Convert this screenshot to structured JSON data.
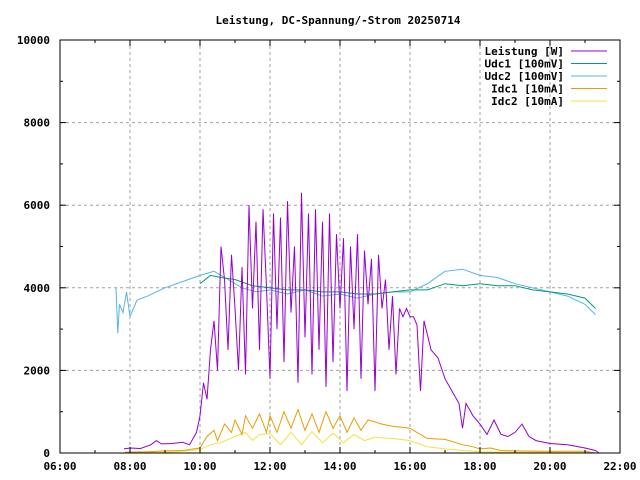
{
  "chart_data": {
    "type": "line",
    "title": "Leistung, DC-Spannung/-Strom 20250714",
    "xlabel": "",
    "ylabel": "",
    "xlim": [
      6,
      22
    ],
    "ylim": [
      0,
      10000
    ],
    "grid": true,
    "legend_position": "top-right",
    "x_ticks": [
      {
        "v": 6,
        "label": "06:00"
      },
      {
        "v": 8,
        "label": "08:00"
      },
      {
        "v": 10,
        "label": "10:00"
      },
      {
        "v": 12,
        "label": "12:00"
      },
      {
        "v": 14,
        "label": "14:00"
      },
      {
        "v": 16,
        "label": "16:00"
      },
      {
        "v": 18,
        "label": "18:00"
      },
      {
        "v": 20,
        "label": "20:00"
      },
      {
        "v": 22,
        "label": "22:00"
      }
    ],
    "y_ticks": [
      {
        "v": 0,
        "label": "0"
      },
      {
        "v": 2000,
        "label": "2000"
      },
      {
        "v": 4000,
        "label": "4000"
      },
      {
        "v": 6000,
        "label": "6000"
      },
      {
        "v": 8000,
        "label": "8000"
      },
      {
        "v": 10000,
        "label": "10000"
      }
    ],
    "series": [
      {
        "name": "Leistung [W]",
        "color": "#9400d3",
        "points": [
          [
            7.83,
            100
          ],
          [
            8.0,
            120
          ],
          [
            8.3,
            110
          ],
          [
            8.6,
            200
          ],
          [
            8.75,
            300
          ],
          [
            8.9,
            220
          ],
          [
            9.2,
            230
          ],
          [
            9.5,
            260
          ],
          [
            9.7,
            200
          ],
          [
            9.9,
            500
          ],
          [
            10.0,
            900
          ],
          [
            10.1,
            1700
          ],
          [
            10.2,
            1300
          ],
          [
            10.3,
            2500
          ],
          [
            10.4,
            3200
          ],
          [
            10.5,
            2000
          ],
          [
            10.6,
            5000
          ],
          [
            10.7,
            4200
          ],
          [
            10.8,
            2500
          ],
          [
            10.9,
            4800
          ],
          [
            11.0,
            3500
          ],
          [
            11.1,
            2000
          ],
          [
            11.2,
            4500
          ],
          [
            11.3,
            1900
          ],
          [
            11.4,
            6000
          ],
          [
            11.5,
            3500
          ],
          [
            11.6,
            5600
          ],
          [
            11.7,
            2500
          ],
          [
            11.8,
            5900
          ],
          [
            11.9,
            4000
          ],
          [
            12.0,
            1800
          ],
          [
            12.1,
            5800
          ],
          [
            12.2,
            3000
          ],
          [
            12.3,
            5700
          ],
          [
            12.4,
            2200
          ],
          [
            12.5,
            6100
          ],
          [
            12.6,
            3400
          ],
          [
            12.7,
            5000
          ],
          [
            12.8,
            1700
          ],
          [
            12.9,
            6300
          ],
          [
            13.0,
            2800
          ],
          [
            13.1,
            5800
          ],
          [
            13.2,
            1900
          ],
          [
            13.3,
            5900
          ],
          [
            13.4,
            2500
          ],
          [
            13.5,
            5600
          ],
          [
            13.6,
            1600
          ],
          [
            13.7,
            5800
          ],
          [
            13.8,
            2200
          ],
          [
            13.9,
            5300
          ],
          [
            14.0,
            3500
          ],
          [
            14.1,
            5200
          ],
          [
            14.2,
            1500
          ],
          [
            14.3,
            5000
          ],
          [
            14.4,
            3000
          ],
          [
            14.5,
            5300
          ],
          [
            14.6,
            1800
          ],
          [
            14.7,
            4900
          ],
          [
            14.8,
            3600
          ],
          [
            14.9,
            4700
          ],
          [
            15.0,
            1500
          ],
          [
            15.1,
            4800
          ],
          [
            15.2,
            3500
          ],
          [
            15.3,
            4200
          ],
          [
            15.4,
            2500
          ],
          [
            15.5,
            3800
          ],
          [
            15.6,
            1900
          ],
          [
            15.7,
            3500
          ],
          [
            15.8,
            3300
          ],
          [
            15.9,
            3500
          ],
          [
            16.0,
            3300
          ],
          [
            16.1,
            3300
          ],
          [
            16.2,
            3100
          ],
          [
            16.3,
            1500
          ],
          [
            16.4,
            3200
          ],
          [
            16.6,
            2500
          ],
          [
            16.8,
            2300
          ],
          [
            17.0,
            1800
          ],
          [
            17.2,
            1500
          ],
          [
            17.4,
            1200
          ],
          [
            17.5,
            600
          ],
          [
            17.6,
            1200
          ],
          [
            17.8,
            900
          ],
          [
            18.0,
            700
          ],
          [
            18.2,
            450
          ],
          [
            18.4,
            800
          ],
          [
            18.6,
            450
          ],
          [
            18.8,
            400
          ],
          [
            19.0,
            500
          ],
          [
            19.2,
            700
          ],
          [
            19.4,
            400
          ],
          [
            19.6,
            300
          ],
          [
            20.0,
            230
          ],
          [
            20.5,
            200
          ],
          [
            21.0,
            120
          ],
          [
            21.3,
            60
          ],
          [
            21.4,
            0
          ]
        ]
      },
      {
        "name": "Udc1 [100mV]",
        "color": "#009e73",
        "points": [
          [
            10.0,
            4100
          ],
          [
            10.3,
            4300
          ],
          [
            10.6,
            4250
          ],
          [
            11.0,
            4200
          ],
          [
            11.5,
            4050
          ],
          [
            12.0,
            4000
          ],
          [
            12.5,
            3950
          ],
          [
            13.0,
            3950
          ],
          [
            13.5,
            3900
          ],
          [
            14.0,
            3900
          ],
          [
            14.5,
            3850
          ],
          [
            15.0,
            3850
          ],
          [
            15.5,
            3900
          ],
          [
            16.0,
            3950
          ],
          [
            16.5,
            3950
          ],
          [
            17.0,
            4100
          ],
          [
            17.5,
            4050
          ],
          [
            18.0,
            4100
          ],
          [
            18.5,
            4050
          ],
          [
            19.0,
            4050
          ],
          [
            19.5,
            3950
          ],
          [
            20.0,
            3900
          ],
          [
            20.5,
            3850
          ],
          [
            21.0,
            3750
          ],
          [
            21.3,
            3500
          ]
        ]
      },
      {
        "name": "Udc2 [100mV]",
        "color": "#56b4e9",
        "points": [
          [
            7.6,
            4000
          ],
          [
            7.65,
            2900
          ],
          [
            7.7,
            3600
          ],
          [
            7.8,
            3400
          ],
          [
            7.9,
            3900
          ],
          [
            8.0,
            3300
          ],
          [
            8.2,
            3700
          ],
          [
            8.5,
            3800
          ],
          [
            9.0,
            4000
          ],
          [
            9.5,
            4150
          ],
          [
            10.0,
            4300
          ],
          [
            10.4,
            4400
          ],
          [
            10.8,
            4200
          ],
          [
            11.2,
            4000
          ],
          [
            11.6,
            3900
          ],
          [
            12.0,
            3950
          ],
          [
            12.5,
            3850
          ],
          [
            13.0,
            3950
          ],
          [
            13.5,
            3800
          ],
          [
            14.0,
            3850
          ],
          [
            14.5,
            3750
          ],
          [
            15.0,
            3850
          ],
          [
            15.5,
            3900
          ],
          [
            16.0,
            3900
          ],
          [
            16.5,
            4100
          ],
          [
            17.0,
            4400
          ],
          [
            17.5,
            4450
          ],
          [
            18.0,
            4300
          ],
          [
            18.5,
            4250
          ],
          [
            19.0,
            4100
          ],
          [
            19.5,
            4000
          ],
          [
            20.0,
            3900
          ],
          [
            20.5,
            3800
          ],
          [
            21.0,
            3600
          ],
          [
            21.3,
            3350
          ]
        ]
      },
      {
        "name": "Idc1 [10mA]",
        "color": "#e69f00",
        "points": [
          [
            7.85,
            20
          ],
          [
            8.5,
            30
          ],
          [
            9.0,
            50
          ],
          [
            9.5,
            60
          ],
          [
            10.0,
            120
          ],
          [
            10.2,
            400
          ],
          [
            10.4,
            550
          ],
          [
            10.5,
            300
          ],
          [
            10.7,
            700
          ],
          [
            10.9,
            500
          ],
          [
            11.0,
            800
          ],
          [
            11.2,
            450
          ],
          [
            11.3,
            900
          ],
          [
            11.5,
            600
          ],
          [
            11.7,
            950
          ],
          [
            11.9,
            500
          ],
          [
            12.0,
            900
          ],
          [
            12.2,
            500
          ],
          [
            12.4,
            1000
          ],
          [
            12.6,
            600
          ],
          [
            12.8,
            1050
          ],
          [
            13.0,
            550
          ],
          [
            13.2,
            950
          ],
          [
            13.4,
            500
          ],
          [
            13.6,
            1000
          ],
          [
            13.8,
            600
          ],
          [
            14.0,
            900
          ],
          [
            14.2,
            500
          ],
          [
            14.4,
            850
          ],
          [
            14.6,
            550
          ],
          [
            14.8,
            800
          ],
          [
            15.0,
            750
          ],
          [
            15.2,
            700
          ],
          [
            15.5,
            650
          ],
          [
            16.0,
            600
          ],
          [
            16.2,
            500
          ],
          [
            16.5,
            350
          ],
          [
            17.0,
            330
          ],
          [
            17.5,
            200
          ],
          [
            17.8,
            150
          ],
          [
            18.0,
            100
          ],
          [
            18.3,
            120
          ],
          [
            18.6,
            60
          ],
          [
            19.0,
            50
          ],
          [
            20.0,
            40
          ],
          [
            21.0,
            40
          ],
          [
            21.3,
            0
          ]
        ]
      },
      {
        "name": "Idc2 [10mA]",
        "color": "#f0e442",
        "points": [
          [
            8.0,
            10
          ],
          [
            9.0,
            20
          ],
          [
            9.5,
            40
          ],
          [
            10.0,
            80
          ],
          [
            10.3,
            200
          ],
          [
            10.6,
            250
          ],
          [
            11.0,
            400
          ],
          [
            11.3,
            500
          ],
          [
            11.5,
            300
          ],
          [
            11.7,
            450
          ],
          [
            12.0,
            470
          ],
          [
            12.3,
            200
          ],
          [
            12.6,
            500
          ],
          [
            12.9,
            200
          ],
          [
            13.2,
            520
          ],
          [
            13.5,
            250
          ],
          [
            13.8,
            480
          ],
          [
            14.1,
            250
          ],
          [
            14.4,
            450
          ],
          [
            14.7,
            300
          ],
          [
            15.0,
            380
          ],
          [
            15.5,
            350
          ],
          [
            16.0,
            300
          ],
          [
            16.5,
            150
          ],
          [
            17.0,
            100
          ],
          [
            17.5,
            60
          ],
          [
            18.0,
            30
          ],
          [
            19.0,
            20
          ],
          [
            20.0,
            20
          ],
          [
            21.0,
            15
          ],
          [
            21.3,
            0
          ]
        ]
      }
    ]
  }
}
